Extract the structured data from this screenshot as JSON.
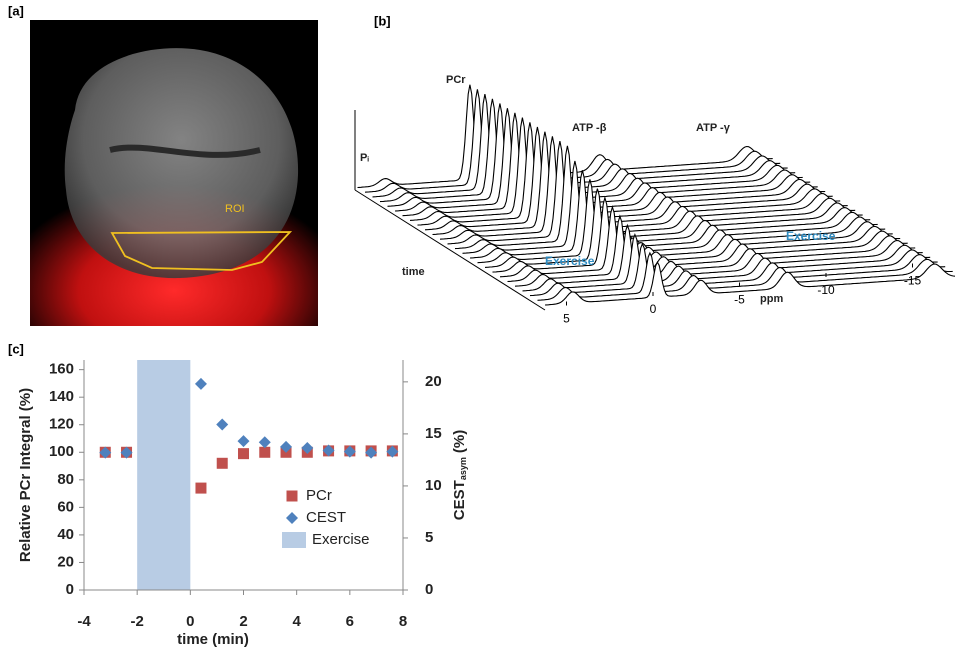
{
  "panel_a": {
    "label": "[a]",
    "roi_label": "ROI"
  },
  "panel_b": {
    "label": "[b]",
    "peak_labels": [
      "PCr",
      "ATP -β",
      "ATP -γ",
      "Pᵢ"
    ],
    "time_label": "time",
    "x_label": "ppm",
    "xticks": [
      5,
      0,
      -5,
      -10,
      -15
    ],
    "annotations": [
      "Exercise",
      "Exercise"
    ]
  },
  "chart_data": {
    "type": "scatter",
    "label": "[c]",
    "x_label": "time (min)",
    "y_label": "Relative PCr Integral (%)",
    "y2_label": {
      "main": "CEST",
      "sub": "asym",
      "unit": "(%)"
    },
    "xlim": [
      -4,
      8
    ],
    "xticks": [
      -4,
      -2,
      0,
      2,
      4,
      6,
      8
    ],
    "ylim": [
      0,
      167
    ],
    "yticks": [
      0,
      20,
      40,
      60,
      80,
      100,
      120,
      140,
      160
    ],
    "y2lim": [
      0,
      22.1
    ],
    "y2ticks": [
      0,
      5,
      10,
      15,
      20
    ],
    "bands": [
      {
        "name": "Exercise",
        "x": [
          -2,
          0
        ],
        "color": "#b8cce4"
      }
    ],
    "series": [
      {
        "name": "PCr",
        "color": "#c0504d",
        "marker": "square",
        "x": [
          -3.2,
          -2.4,
          0.4,
          1.2,
          2,
          2.8,
          3.6,
          4.4,
          5.2,
          6,
          6.8,
          7.6
        ],
        "values": [
          100,
          100,
          74,
          92,
          99,
          100,
          100,
          100,
          101,
          101,
          101,
          101
        ]
      },
      {
        "name": "CEST",
        "color": "#4f81bd",
        "marker": "diamond",
        "axis": "y2",
        "x": [
          -3.2,
          -2.4,
          0.4,
          1.2,
          2,
          2.8,
          3.6,
          4.4,
          5.2,
          6,
          6.8,
          7.6
        ],
        "values": [
          13.2,
          13.2,
          19.8,
          15.9,
          14.3,
          14.2,
          13.75,
          13.65,
          13.4,
          13.3,
          13.2,
          13.3
        ]
      }
    ],
    "legend": "center-right"
  }
}
